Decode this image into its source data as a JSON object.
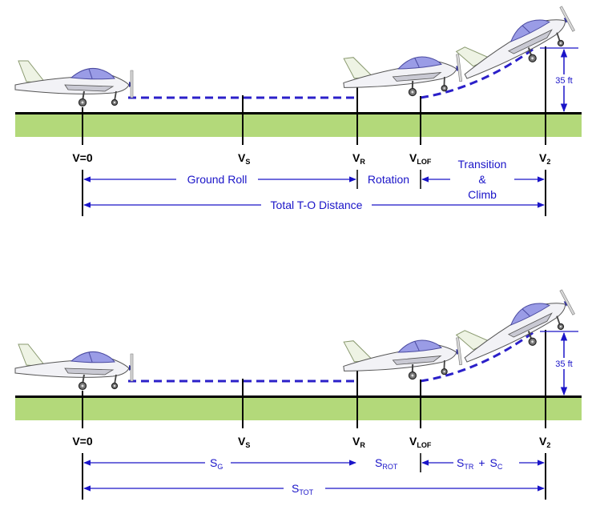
{
  "colors": {
    "ground": "#b3d97a",
    "runway_line": "#000000",
    "arrow": "#1a14c8",
    "path": "#2b20c9",
    "fuselage": "#f2f2f6",
    "canopy": "#9a9ce6",
    "wheel": "#555555"
  },
  "speeds": {
    "v0": "V=0",
    "vs_main": "V",
    "vs_sub": "S",
    "vr_main": "V",
    "vr_sub": "R",
    "vlof_main": "V",
    "vlof_sub": "LOF",
    "v2_main": "V",
    "v2_sub": "2"
  },
  "top": {
    "ground_roll": "Ground Roll",
    "rotation": "Rotation",
    "transition_1": "Transition",
    "transition_2": "&",
    "transition_3": "Climb",
    "total": "Total T-O Distance",
    "obstacle": "35 ft"
  },
  "bottom": {
    "sg_main": "S",
    "sg_sub": "G",
    "srot_main": "S",
    "srot_sub": "ROT",
    "str_main": "S",
    "str_sub": "TR",
    "plus": "+",
    "sc_main": "S",
    "sc_sub": "C",
    "stot_main": "S",
    "stot_sub": "TOT",
    "obstacle": "35 ft"
  }
}
